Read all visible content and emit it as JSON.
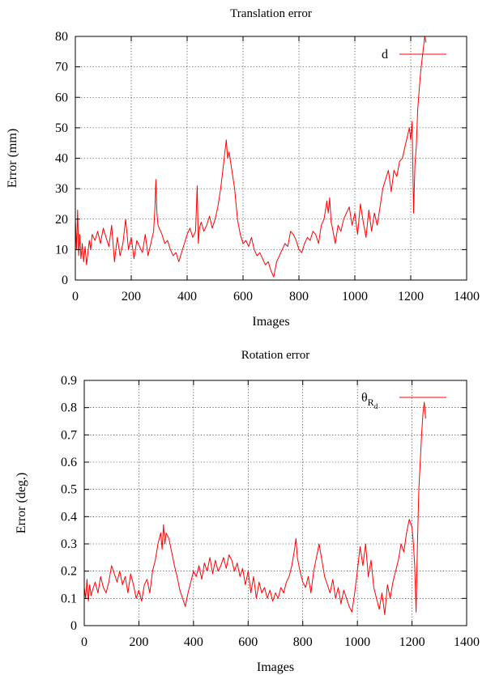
{
  "chart_data": [
    {
      "type": "line",
      "title": "Translation error",
      "xlabel": "Images",
      "ylabel": "Error (mm)",
      "xlim": [
        0,
        1400
      ],
      "ylim": [
        0,
        80
      ],
      "xticks": [
        0,
        200,
        400,
        600,
        800,
        1000,
        1200,
        1400
      ],
      "yticks": [
        0,
        10,
        20,
        30,
        40,
        50,
        60,
        70,
        80
      ],
      "grid": true,
      "legend": "top-right",
      "series": [
        {
          "name": "d",
          "color": "#ff0000",
          "x": [
            0,
            4,
            8,
            12,
            16,
            20,
            25,
            30,
            35,
            40,
            45,
            50,
            55,
            60,
            70,
            80,
            90,
            100,
            110,
            120,
            130,
            140,
            150,
            160,
            170,
            180,
            190,
            200,
            210,
            220,
            230,
            240,
            250,
            260,
            270,
            280,
            285,
            288,
            292,
            296,
            300,
            310,
            320,
            330,
            340,
            350,
            360,
            370,
            380,
            390,
            400,
            410,
            420,
            430,
            436,
            440,
            444,
            450,
            460,
            470,
            480,
            490,
            500,
            510,
            520,
            530,
            535,
            540,
            545,
            550,
            560,
            570,
            580,
            590,
            600,
            610,
            620,
            630,
            640,
            650,
            660,
            670,
            680,
            690,
            700,
            710,
            720,
            730,
            740,
            750,
            760,
            770,
            780,
            790,
            800,
            810,
            820,
            830,
            840,
            850,
            860,
            870,
            880,
            890,
            900,
            905,
            910,
            915,
            920,
            930,
            940,
            950,
            960,
            970,
            980,
            990,
            1000,
            1010,
            1020,
            1030,
            1040,
            1050,
            1060,
            1070,
            1080,
            1090,
            1100,
            1110,
            1120,
            1130,
            1140,
            1150,
            1160,
            1170,
            1180,
            1190,
            1195,
            1200,
            1205,
            1210,
            1215,
            1220,
            1225,
            1230,
            1235,
            1240,
            1245,
            1250,
            1255
          ],
          "values": [
            20,
            10,
            23,
            8,
            15,
            7,
            12,
            6,
            11,
            5,
            9,
            13,
            10,
            15,
            13,
            16,
            12,
            17,
            14,
            11,
            18,
            6,
            14,
            8,
            12,
            20,
            10,
            14,
            7,
            13,
            11,
            9,
            15,
            8,
            12,
            16,
            24,
            33,
            22,
            18,
            17,
            15,
            12,
            13,
            10,
            8,
            9,
            6,
            9,
            12,
            15,
            17,
            14,
            16,
            31,
            12,
            17,
            19,
            16,
            18,
            21,
            17,
            20,
            24,
            30,
            38,
            42,
            46,
            40,
            42,
            36,
            30,
            20,
            15,
            12,
            13,
            11,
            14,
            10,
            8,
            9,
            7,
            5,
            6,
            3,
            1,
            6,
            8,
            10,
            12,
            11,
            16,
            15,
            13,
            10,
            9,
            12,
            14,
            13,
            16,
            15,
            12,
            18,
            20,
            26,
            22,
            27,
            19,
            17,
            12,
            18,
            16,
            20,
            22,
            24,
            18,
            22,
            15,
            25,
            19,
            14,
            23,
            16,
            22,
            18,
            24,
            30,
            33,
            36,
            29,
            36,
            34,
            39,
            40,
            44,
            48,
            50,
            46,
            52,
            22,
            38,
            44,
            56,
            62,
            68,
            72,
            76,
            80,
            78
          ]
        }
      ]
    },
    {
      "type": "line",
      "title": "Rotation error",
      "xlabel": "Images",
      "ylabel": "Error (deg.)",
      "xlim": [
        0,
        1400
      ],
      "ylim": [
        0,
        0.9
      ],
      "xticks": [
        0,
        200,
        400,
        600,
        800,
        1000,
        1200,
        1400
      ],
      "yticks": [
        0,
        0.1,
        0.2,
        0.3,
        0.4,
        0.5,
        0.6,
        0.7,
        0.8,
        0.9
      ],
      "grid": true,
      "legend": "top-right",
      "series": [
        {
          "name": "θ",
          "name_sub": "R",
          "name_subsub": "d",
          "color": "#ff0000",
          "x": [
            0,
            5,
            10,
            15,
            20,
            25,
            30,
            40,
            50,
            60,
            70,
            80,
            90,
            100,
            110,
            120,
            130,
            140,
            150,
            160,
            170,
            180,
            190,
            200,
            210,
            220,
            230,
            240,
            250,
            260,
            270,
            280,
            285,
            290,
            295,
            300,
            310,
            320,
            330,
            340,
            350,
            360,
            370,
            380,
            390,
            400,
            410,
            420,
            430,
            440,
            450,
            460,
            470,
            480,
            490,
            500,
            510,
            520,
            530,
            540,
            550,
            560,
            570,
            580,
            590,
            600,
            610,
            620,
            630,
            640,
            650,
            660,
            670,
            680,
            690,
            700,
            710,
            720,
            730,
            740,
            750,
            760,
            770,
            775,
            780,
            790,
            800,
            810,
            820,
            830,
            840,
            850,
            860,
            870,
            880,
            890,
            900,
            910,
            920,
            930,
            940,
            950,
            960,
            970,
            980,
            990,
            1000,
            1010,
            1020,
            1030,
            1040,
            1050,
            1060,
            1070,
            1080,
            1090,
            1100,
            1110,
            1120,
            1130,
            1140,
            1150,
            1160,
            1170,
            1180,
            1190,
            1200,
            1205,
            1210,
            1215,
            1220,
            1225,
            1230,
            1235,
            1240,
            1245,
            1250
          ],
          "values": [
            0.14,
            0.1,
            0.17,
            0.09,
            0.15,
            0.11,
            0.13,
            0.16,
            0.12,
            0.18,
            0.14,
            0.12,
            0.16,
            0.22,
            0.19,
            0.16,
            0.2,
            0.15,
            0.18,
            0.12,
            0.19,
            0.15,
            0.1,
            0.13,
            0.09,
            0.15,
            0.17,
            0.12,
            0.2,
            0.24,
            0.3,
            0.34,
            0.28,
            0.37,
            0.3,
            0.34,
            0.32,
            0.27,
            0.22,
            0.18,
            0.13,
            0.1,
            0.07,
            0.12,
            0.16,
            0.2,
            0.18,
            0.22,
            0.17,
            0.23,
            0.2,
            0.25,
            0.19,
            0.24,
            0.2,
            0.22,
            0.25,
            0.21,
            0.26,
            0.24,
            0.2,
            0.23,
            0.18,
            0.21,
            0.15,
            0.2,
            0.12,
            0.18,
            0.1,
            0.16,
            0.12,
            0.14,
            0.1,
            0.13,
            0.09,
            0.12,
            0.1,
            0.14,
            0.12,
            0.16,
            0.18,
            0.22,
            0.28,
            0.32,
            0.25,
            0.2,
            0.16,
            0.14,
            0.18,
            0.12,
            0.2,
            0.25,
            0.3,
            0.24,
            0.18,
            0.15,
            0.12,
            0.17,
            0.1,
            0.14,
            0.08,
            0.13,
            0.1,
            0.07,
            0.05,
            0.12,
            0.2,
            0.29,
            0.22,
            0.3,
            0.18,
            0.24,
            0.14,
            0.1,
            0.06,
            0.12,
            0.04,
            0.15,
            0.1,
            0.16,
            0.2,
            0.24,
            0.3,
            0.27,
            0.34,
            0.39,
            0.36,
            0.3,
            0.22,
            0.05,
            0.3,
            0.5,
            0.6,
            0.7,
            0.78,
            0.82,
            0.76
          ]
        }
      ]
    }
  ]
}
